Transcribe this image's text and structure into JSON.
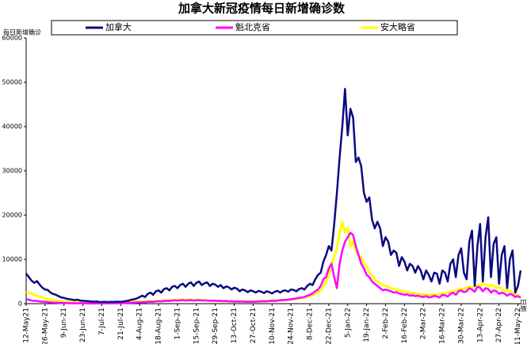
{
  "chart_data": {
    "type": "line",
    "title": "加拿大新冠疫情每日新增确诊数",
    "y_label": "每日新增确诊",
    "x_label": "日期",
    "categories": [
      "12-May21",
      null,
      null,
      null,
      null,
      null,
      null,
      "26-May-21",
      null,
      null,
      null,
      null,
      null,
      null,
      "9-Jun-21",
      null,
      null,
      null,
      null,
      null,
      null,
      "23-Jun-21",
      null,
      null,
      null,
      null,
      null,
      null,
      "7-Jul-21",
      null,
      null,
      null,
      null,
      null,
      null,
      "21-Jul-21",
      null,
      null,
      null,
      null,
      null,
      null,
      "4-Aug-21",
      null,
      null,
      null,
      null,
      null,
      null,
      "18-Aug-21",
      null,
      null,
      null,
      null,
      null,
      null,
      "1-Sep-21",
      null,
      null,
      null,
      null,
      null,
      null,
      "15-Sep-21",
      null,
      null,
      null,
      null,
      null,
      null,
      "29-Sep-21",
      null,
      null,
      null,
      null,
      null,
      null,
      "13-Oct-21",
      null,
      null,
      null,
      null,
      null,
      null,
      "27-Oct-21",
      null,
      null,
      null,
      null,
      null,
      null,
      "10-Nov-21",
      null,
      null,
      null,
      null,
      null,
      null,
      "24-Nov-21",
      null,
      null,
      null,
      null,
      null,
      null,
      "8-Dec-21",
      null,
      null,
      null,
      null,
      null,
      null,
      "22-Dec-21",
      null,
      null,
      null,
      null,
      null,
      null,
      "5-Jan-22",
      null,
      null,
      null,
      null,
      null,
      null,
      "19-Jan-22",
      null,
      null,
      null,
      null,
      null,
      null,
      "2-Feb-22",
      null,
      null,
      null,
      null,
      null,
      null,
      "16-Feb-22",
      null,
      null,
      null,
      null,
      null,
      null,
      "2-Mar-22",
      null,
      null,
      null,
      null,
      null,
      null,
      "16-Mar-22",
      null,
      null,
      null,
      null,
      null,
      null,
      "30-Mar-22",
      null,
      null,
      null,
      null,
      null,
      null,
      "13-Apr-22",
      null,
      null,
      null,
      null,
      null,
      null,
      "27-Apr-22",
      null,
      null,
      null,
      null,
      null,
      null,
      "11-May-22",
      null
    ],
    "series": [
      {
        "name": "加拿大",
        "color": "#0a0a80",
        "values": [
          6800,
          6000,
          5200,
          4700,
          5100,
          4300,
          3600,
          3200,
          3100,
          2500,
          2200,
          2000,
          1700,
          1400,
          1300,
          1100,
          1000,
          900,
          800,
          900,
          700,
          650,
          600,
          550,
          500,
          450,
          500,
          400,
          380,
          420,
          350,
          400,
          380,
          420,
          450,
          400,
          500,
          600,
          700,
          900,
          1000,
          1200,
          1500,
          1800,
          1500,
          2200,
          2500,
          2000,
          2800,
          3000,
          2500,
          3300,
          3500,
          3000,
          3800,
          4000,
          3500,
          4200,
          4500,
          3800,
          4500,
          4800,
          4000,
          4700,
          5000,
          4200,
          4600,
          4800,
          4000,
          4500,
          4300,
          3800,
          4200,
          3500,
          3900,
          3700,
          3200,
          3600,
          3400,
          2800,
          3200,
          3000,
          2600,
          3000,
          2800,
          2500,
          2900,
          2700,
          2400,
          2800,
          2600,
          2300,
          2700,
          2900,
          2500,
          2900,
          3000,
          2700,
          3200,
          3100,
          2800,
          3300,
          3500,
          3200,
          4000,
          4500,
          4200,
          5500,
          6500,
          7000,
          9500,
          11000,
          13000,
          12000,
          18000,
          25000,
          33000,
          40000,
          48500,
          38000,
          44000,
          42000,
          32000,
          33000,
          31000,
          25000,
          23000,
          24000,
          19000,
          17000,
          18500,
          17000,
          13000,
          15000,
          14000,
          11000,
          12000,
          11500,
          8500,
          10500,
          9500,
          7500,
          9000,
          8500,
          7000,
          8500,
          7500,
          5500,
          7500,
          6500,
          5000,
          7000,
          6800,
          4500,
          7500,
          7000,
          5000,
          9000,
          10000,
          6000,
          11000,
          12500,
          7000,
          5500,
          14000,
          16500,
          4000,
          13000,
          18000,
          5000,
          15000,
          19500,
          6000,
          13500,
          15000,
          4500,
          11000,
          13000,
          3500,
          10000,
          12000,
          2500,
          4000,
          7500
        ]
      },
      {
        "name": "魁北克省",
        "color": "#ff00ff",
        "values": [
          1000,
          900,
          700,
          650,
          600,
          500,
          450,
          400,
          350,
          300,
          250,
          220,
          180,
          160,
          150,
          130,
          120,
          100,
          90,
          100,
          80,
          90,
          80,
          70,
          80,
          70,
          80,
          70,
          60,
          80,
          70,
          80,
          90,
          100,
          90,
          100,
          120,
          150,
          180,
          200,
          250,
          280,
          300,
          350,
          320,
          400,
          450,
          400,
          500,
          550,
          500,
          600,
          650,
          600,
          700,
          750,
          700,
          750,
          800,
          700,
          750,
          800,
          700,
          750,
          800,
          700,
          750,
          700,
          650,
          700,
          650,
          600,
          650,
          550,
          600,
          500,
          550,
          450,
          500,
          450,
          500,
          450,
          400,
          450,
          450,
          400,
          500,
          500,
          550,
          500,
          600,
          650,
          600,
          700,
          750,
          800,
          850,
          900,
          1000,
          1100,
          1200,
          1300,
          1400,
          1500,
          1800,
          2000,
          2300,
          2800,
          3200,
          4000,
          5500,
          6000,
          8000,
          9000,
          6000,
          3500,
          9000,
          12000,
          14000,
          15000,
          16000,
          15500,
          13000,
          11000,
          9000,
          8000,
          6500,
          6000,
          5000,
          4500,
          4000,
          3500,
          3000,
          3200,
          3000,
          2800,
          2500,
          2600,
          2300,
          2200,
          2000,
          2100,
          1800,
          1900,
          1700,
          1800,
          1600,
          1500,
          1700,
          1400,
          1500,
          1800,
          1600,
          1400,
          2000,
          1900,
          1600,
          2200,
          2500,
          2000,
          2800,
          3000,
          2600,
          2800,
          3500,
          3200,
          2700,
          3800,
          3600,
          2800,
          3500,
          3300,
          2500,
          3000,
          2800,
          2200,
          2500,
          2300,
          1800,
          2200,
          2000,
          1500,
          1700,
          1300
        ]
      },
      {
        "name": "安大略省",
        "color": "#ffff00",
        "values": [
          2700,
          2500,
          2300,
          2000,
          1800,
          1600,
          1400,
          1200,
          1000,
          900,
          800,
          700,
          600,
          500,
          450,
          400,
          350,
          300,
          300,
          250,
          250,
          200,
          200,
          200,
          180,
          180,
          170,
          170,
          180,
          180,
          190,
          200,
          190,
          200,
          210,
          220,
          250,
          280,
          300,
          350,
          380,
          400,
          420,
          450,
          500,
          480,
          520,
          550,
          600,
          580,
          650,
          680,
          700,
          750,
          800,
          820,
          850,
          880,
          900,
          850,
          900,
          880,
          820,
          860,
          800,
          780,
          760,
          700,
          680,
          650,
          620,
          600,
          580,
          560,
          550,
          540,
          520,
          500,
          520,
          480,
          500,
          470,
          480,
          500,
          520,
          540,
          580,
          600,
          620,
          650,
          640,
          700,
          720,
          700,
          760,
          800,
          850,
          900,
          950,
          1000,
          1100,
          1200,
          1300,
          1400,
          1500,
          1700,
          1900,
          2200,
          2600,
          3000,
          4000,
          5000,
          6500,
          9000,
          10500,
          12500,
          16000,
          18500,
          16000,
          17000,
          13000,
          14000,
          12000,
          11000,
          10500,
          9000,
          8500,
          7000,
          6500,
          5500,
          5000,
          4500,
          4200,
          4000,
          3800,
          3500,
          3300,
          3200,
          3000,
          2900,
          2800,
          2600,
          2500,
          2400,
          2300,
          2200,
          2100,
          2000,
          2100,
          1900,
          2000,
          2100,
          2000,
          2200,
          2300,
          2200,
          2500,
          2700,
          2600,
          3000,
          3200,
          3400,
          3300,
          3600,
          3800,
          3500,
          4000,
          4200,
          3800,
          4500,
          4300,
          3900,
          4200,
          4000,
          3500,
          3800,
          3300,
          3000,
          2800,
          3000,
          2500,
          2200,
          1800,
          1500
        ]
      }
    ],
    "ylim": [
      0,
      60000
    ],
    "yticks": [
      0,
      10000,
      20000,
      30000,
      40000,
      50000,
      60000
    ],
    "grid": false
  }
}
